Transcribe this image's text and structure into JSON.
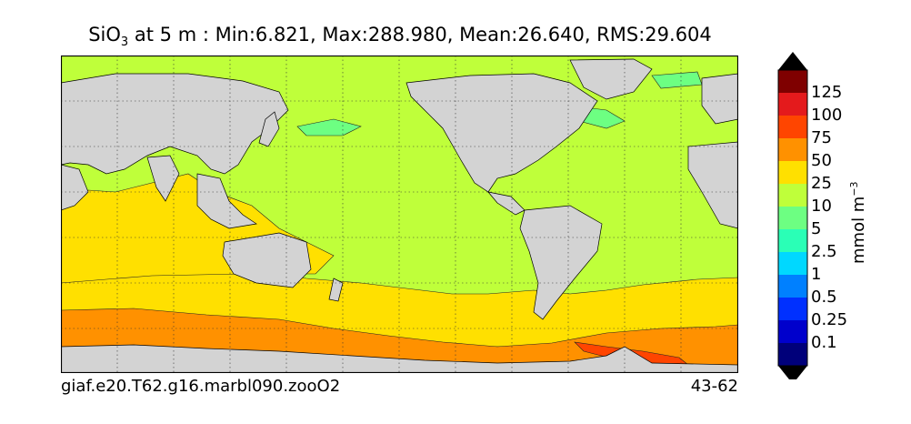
{
  "title": {
    "var": "SiO",
    "sub": "3",
    "rest": " at 5 m : Min:6.821, Max:288.980, Mean:26.640, RMS:29.604"
  },
  "footer": {
    "left": "giaf.e20.T62.g16.marbl090.zooO2",
    "right": "43-62"
  },
  "colorbar": {
    "unit_base": "mmol m",
    "unit_exp": "−3",
    "levels": [
      "125",
      "100",
      "75",
      "50",
      "25",
      "10",
      "5",
      "2.5",
      "1",
      "0.5",
      "0.25",
      "0.1"
    ],
    "colors": [
      "#7f0000",
      "#e41a1c",
      "#ff4500",
      "#ff9100",
      "#ffe000",
      "#bfff3a",
      "#6dff82",
      "#2affb6",
      "#00d8ff",
      "#0080ff",
      "#0030ff",
      "#0000cc",
      "#00007a"
    ],
    "over_color": "#000000",
    "under_color": "#000000"
  },
  "map": {
    "land_color": "#d3d3d3",
    "background_field_color": "#bfff3a",
    "projection": "cylindrical equidistant, centered ~200E",
    "gridlines": "dotted"
  }
}
